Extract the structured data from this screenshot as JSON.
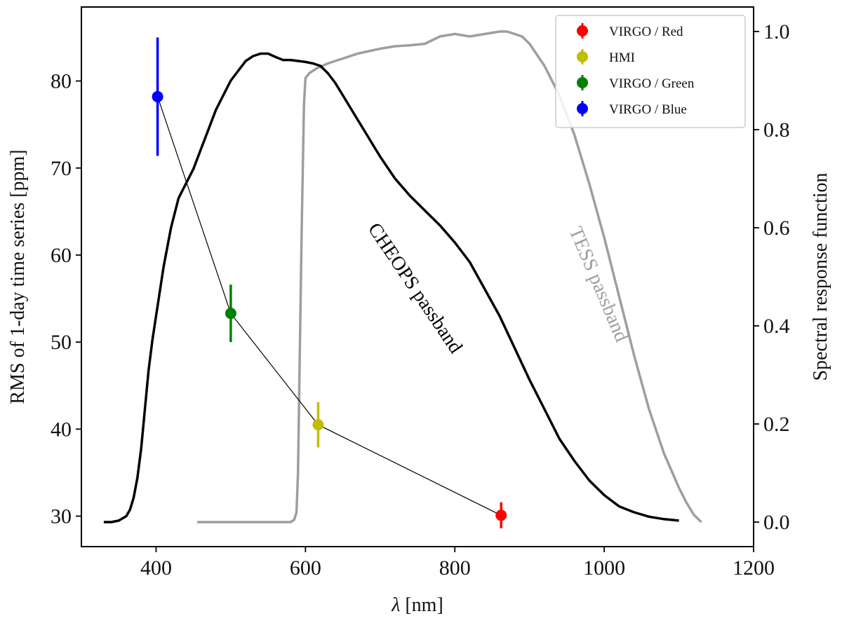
{
  "chart_data": {
    "type": "line",
    "x_axis": {
      "label_symbol": "λ",
      "label_unit": " [nm]",
      "range": [
        300,
        1200
      ],
      "ticks": [
        400,
        600,
        800,
        1000,
        1200
      ]
    },
    "y_axis_left": {
      "label": "RMS of 1-day time series [ppm]",
      "range": [
        26.5,
        88.5
      ],
      "ticks": [
        30,
        40,
        50,
        60,
        70,
        80
      ]
    },
    "y_axis_right": {
      "label": "Spectral response function",
      "range": [
        -0.05,
        1.05
      ],
      "ticks": [
        0.0,
        0.2,
        0.4,
        0.6,
        0.8,
        1.0
      ],
      "tick_labels": [
        "0.0",
        "0.2",
        "0.4",
        "0.6",
        "0.8",
        "1.0"
      ]
    },
    "rms_points": [
      {
        "name": "VIRGO / Red",
        "x": 862,
        "y": 30.1,
        "err": 1.5,
        "color": "#ff0000"
      },
      {
        "name": "HMI",
        "x": 617,
        "y": 40.5,
        "err": 2.6,
        "color": "#bfbf00"
      },
      {
        "name": "VIRGO / Green",
        "x": 500,
        "y": 53.3,
        "err": 3.3,
        "color": "#008000"
      },
      {
        "name": "VIRGO / Blue",
        "x": 402,
        "y": 78.2,
        "err": 6.8,
        "color": "#0000ff"
      }
    ],
    "connecting_line_color": "#000000",
    "cheops_passband": {
      "name": "CHEOPS passband",
      "color": "#000000",
      "x": [
        330,
        340,
        350,
        360,
        365,
        370,
        375,
        380,
        385,
        390,
        395,
        400,
        410,
        420,
        430,
        440,
        450,
        460,
        470,
        480,
        490,
        500,
        510,
        520,
        530,
        540,
        550,
        560,
        570,
        580,
        590,
        600,
        610,
        620,
        630,
        640,
        650,
        660,
        670,
        680,
        690,
        700,
        720,
        740,
        760,
        780,
        800,
        820,
        840,
        860,
        880,
        900,
        920,
        940,
        960,
        980,
        1000,
        1020,
        1040,
        1060,
        1080,
        1100
      ],
      "y": [
        0.0,
        0.0,
        0.003,
        0.012,
        0.025,
        0.05,
        0.09,
        0.15,
        0.23,
        0.31,
        0.37,
        0.42,
        0.52,
        0.6,
        0.66,
        0.69,
        0.72,
        0.76,
        0.8,
        0.84,
        0.87,
        0.9,
        0.92,
        0.94,
        0.95,
        0.955,
        0.955,
        0.948,
        0.942,
        0.942,
        0.94,
        0.938,
        0.935,
        0.93,
        0.915,
        0.895,
        0.87,
        0.845,
        0.82,
        0.795,
        0.77,
        0.745,
        0.7,
        0.665,
        0.635,
        0.605,
        0.57,
        0.53,
        0.475,
        0.42,
        0.355,
        0.29,
        0.23,
        0.17,
        0.125,
        0.085,
        0.055,
        0.032,
        0.02,
        0.011,
        0.006,
        0.003
      ]
    },
    "tess_passband": {
      "name": "TESS passband",
      "color": "#9e9e9e",
      "x": [
        455,
        480,
        520,
        560,
        580,
        585,
        588,
        590,
        592,
        595,
        598,
        600,
        605,
        615,
        630,
        650,
        670,
        700,
        720,
        740,
        760,
        780,
        800,
        820,
        840,
        860,
        870,
        880,
        890,
        900,
        920,
        940,
        960,
        980,
        1000,
        1020,
        1040,
        1060,
        1080,
        1100,
        1110,
        1120,
        1130
      ],
      "y": [
        0.0,
        0.0,
        0.0,
        0.0,
        0.0,
        0.005,
        0.02,
        0.1,
        0.3,
        0.6,
        0.85,
        0.905,
        0.915,
        0.925,
        0.935,
        0.945,
        0.955,
        0.965,
        0.97,
        0.972,
        0.975,
        0.99,
        0.995,
        0.99,
        0.995,
        1.0,
        1.0,
        0.995,
        0.99,
        0.975,
        0.93,
        0.87,
        0.79,
        0.69,
        0.58,
        0.46,
        0.34,
        0.23,
        0.14,
        0.07,
        0.04,
        0.015,
        0.0
      ]
    },
    "annotations": [
      {
        "text": "CHEOPS passband",
        "color": "#000000",
        "x": 740,
        "y_right": 0.47,
        "rotation": 56
      },
      {
        "text": "TESS passband",
        "color": "#9e9e9e",
        "x": 985,
        "y_right": 0.48,
        "rotation": 67
      }
    ],
    "legend": {
      "position": "top-right",
      "entries": [
        {
          "label": "VIRGO / Red",
          "color": "#ff0000"
        },
        {
          "label": "HMI",
          "color": "#bfbf00"
        },
        {
          "label": "VIRGO / Green",
          "color": "#008000"
        },
        {
          "label": "VIRGO / Blue",
          "color": "#0000ff"
        }
      ]
    },
    "grid": false
  }
}
